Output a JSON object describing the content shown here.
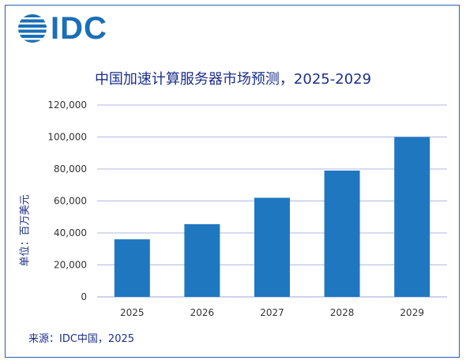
{
  "logo": {
    "text": "IDC",
    "color": "#1a6fb7"
  },
  "source": "来源：IDC中国，2025",
  "chart_data": {
    "type": "bar",
    "title": "中国加速计算服务器市场预测，2025-2029",
    "ylabel": "单位：百万美元",
    "xlabel": "",
    "categories": [
      "2025",
      "2026",
      "2027",
      "2028",
      "2029"
    ],
    "values": [
      36000,
      45500,
      62000,
      79000,
      100000
    ],
    "ylim": [
      0,
      120000
    ],
    "yticks": [
      0,
      20000,
      40000,
      60000,
      80000,
      100000,
      120000
    ],
    "ytick_labels": [
      "0",
      "20,000",
      "40,000",
      "60,000",
      "80,000",
      "100,000",
      "120,000"
    ],
    "grid": true,
    "bar_color": "#1f77c0",
    "grid_color": "#b0b8e0"
  }
}
